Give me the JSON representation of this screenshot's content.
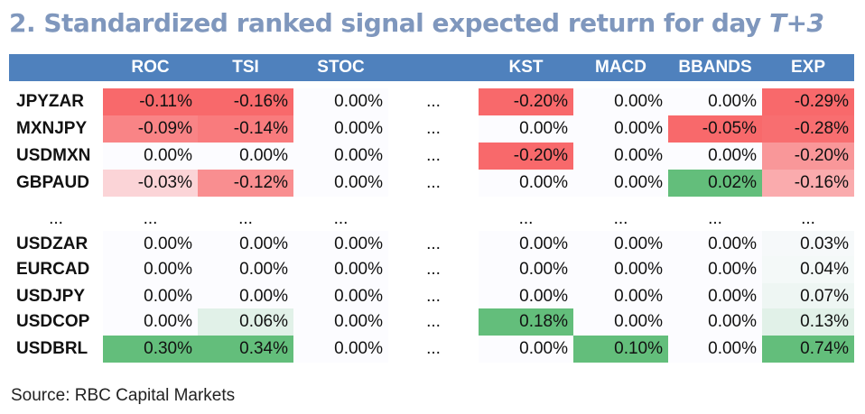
{
  "title": {
    "main": "2. Standardized ranked signal expected return for day ",
    "italic": "T+3"
  },
  "source": "Source: RBC Capital Markets",
  "colors": {
    "header": "#4f81bd",
    "negative": "#f8696b",
    "positive": "#63be7b",
    "neutral": "#fcfcff"
  },
  "chart_data": {
    "type": "table",
    "columns": [
      "ROC",
      "TSI",
      "STOC",
      "",
      "KST",
      "MACD",
      "BBANDS",
      "EXP"
    ],
    "rows": [
      {
        "label": "JPYZAR",
        "ellipsis": false,
        "values": [
          "-0.11%",
          "-0.16%",
          "0.00%",
          "...",
          "-0.20%",
          "0.00%",
          "0.00%",
          "-0.29%"
        ],
        "nums": [
          -0.11,
          -0.16,
          0.0,
          null,
          -0.2,
          0.0,
          0.0,
          -0.29
        ]
      },
      {
        "label": "MXNJPY",
        "ellipsis": false,
        "values": [
          "-0.09%",
          "-0.14%",
          "0.00%",
          "...",
          "0.00%",
          "0.00%",
          "-0.05%",
          "-0.28%"
        ],
        "nums": [
          -0.09,
          -0.14,
          0.0,
          null,
          0.0,
          0.0,
          -0.05,
          -0.28
        ]
      },
      {
        "label": "USDMXN",
        "ellipsis": false,
        "values": [
          "0.00%",
          "0.00%",
          "0.00%",
          "...",
          "-0.20%",
          "0.00%",
          "0.00%",
          "-0.20%"
        ],
        "nums": [
          0.0,
          0.0,
          0.0,
          null,
          -0.2,
          0.0,
          0.0,
          -0.2
        ]
      },
      {
        "label": "GBPAUD",
        "ellipsis": false,
        "values": [
          "-0.03%",
          "-0.12%",
          "0.00%",
          "...",
          "0.00%",
          "0.00%",
          "0.02%",
          "-0.16%"
        ],
        "nums": [
          -0.03,
          -0.12,
          0.0,
          null,
          0.0,
          0.0,
          0.02,
          -0.16
        ]
      },
      {
        "label": "...",
        "ellipsis": true,
        "values": [
          "...",
          "...",
          "...",
          "",
          "...",
          "...",
          "...",
          "..."
        ],
        "nums": [
          null,
          null,
          null,
          null,
          null,
          null,
          null,
          null
        ]
      },
      {
        "label": "USDZAR",
        "ellipsis": false,
        "values": [
          "0.00%",
          "0.00%",
          "0.00%",
          "...",
          "0.00%",
          "0.00%",
          "0.00%",
          "0.03%"
        ],
        "nums": [
          0.0,
          0.0,
          0.0,
          null,
          0.0,
          0.0,
          0.0,
          0.03
        ]
      },
      {
        "label": "EURCAD",
        "ellipsis": false,
        "values": [
          "0.00%",
          "0.00%",
          "0.00%",
          "...",
          "0.00%",
          "0.00%",
          "0.00%",
          "0.04%"
        ],
        "nums": [
          0.0,
          0.0,
          0.0,
          null,
          0.0,
          0.0,
          0.0,
          0.04
        ]
      },
      {
        "label": "USDJPY",
        "ellipsis": false,
        "values": [
          "0.00%",
          "0.00%",
          "0.00%",
          "...",
          "0.00%",
          "0.00%",
          "0.00%",
          "0.07%"
        ],
        "nums": [
          0.0,
          0.0,
          0.0,
          null,
          0.0,
          0.0,
          0.0,
          0.07
        ]
      },
      {
        "label": "USDCOP",
        "ellipsis": false,
        "values": [
          "0.00%",
          "0.06%",
          "0.00%",
          "...",
          "0.18%",
          "0.00%",
          "0.00%",
          "0.13%"
        ],
        "nums": [
          0.0,
          0.06,
          0.0,
          null,
          0.18,
          0.0,
          0.0,
          0.13
        ]
      },
      {
        "label": "USDBRL",
        "ellipsis": false,
        "values": [
          "0.30%",
          "0.34%",
          "0.00%",
          "...",
          "0.00%",
          "0.10%",
          "0.00%",
          "0.74%"
        ],
        "nums": [
          0.3,
          0.34,
          0.0,
          null,
          0.0,
          0.1,
          0.0,
          0.74
        ]
      }
    ]
  }
}
